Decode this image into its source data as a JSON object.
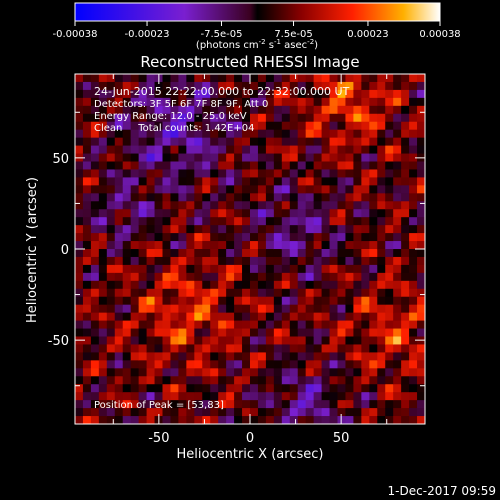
{
  "chart_data": {
    "type": "heatmap",
    "title": "Reconstructed RHESSI Image",
    "xlabel": "Heliocentric X (arcsec)",
    "ylabel": "Heliocentric Y (arcsec)",
    "xlim": [
      -96,
      96
    ],
    "ylim": [
      -96,
      96
    ],
    "x_ticks": [
      "-50",
      "0",
      "50"
    ],
    "y_ticks": [
      "50",
      "0",
      "-50"
    ],
    "colorbar": {
      "range": [
        -0.00038,
        0.00038
      ],
      "ticks": [
        "-0.00038",
        "-0.00023",
        "-7.5e-05",
        "7.5e-05",
        "0.00023",
        "0.00038"
      ],
      "unit_main": "(photons cm",
      "unit_exp1": "-2",
      "unit_mid": " s",
      "unit_exp2": "-1",
      "unit_end": " asec",
      "unit_exp3": "-2",
      "unit_close": ")"
    },
    "annotations": [
      "24-Jun-2015 22:22:00.000 to 22:32:00.000 UT",
      "Detectors: 3F 5F 6F 7F 8F 9F, Att 0",
      "Energy Range: 12.0 - 25.0 keV",
      "Clean     Total counts: 1.42E+04"
    ],
    "peak_label": "Position of Peak = [53,83]",
    "peak_position": [
      53,
      83
    ]
  },
  "footer": {
    "date": "1-Dec-2017 09:59"
  }
}
